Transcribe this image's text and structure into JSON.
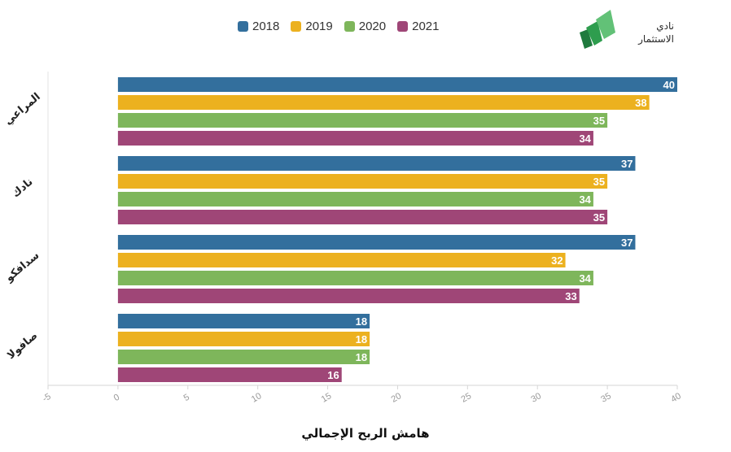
{
  "chart_data": {
    "type": "bar",
    "orientation": "horizontal",
    "categories": [
      "المراعي",
      "نادك",
      "سدافكو",
      "صافولا"
    ],
    "series": [
      {
        "name": "2018",
        "color": "#336f9d",
        "values": [
          40,
          37,
          37,
          18
        ]
      },
      {
        "name": "2019",
        "color": "#ecb11f",
        "values": [
          38,
          35,
          32,
          18
        ]
      },
      {
        "name": "2020",
        "color": "#7eb65b",
        "values": [
          35,
          34,
          34,
          18
        ]
      },
      {
        "name": "2021",
        "color": "#9f4677",
        "values": [
          34,
          35,
          33,
          16
        ]
      }
    ],
    "xlabel": "هامش الربح الإجمالي",
    "ylabel": "",
    "xlim": [
      -5,
      40
    ],
    "xticks": [
      -5,
      0,
      5,
      10,
      15,
      20,
      25,
      30,
      35,
      40
    ],
    "grid": false,
    "legend_position": "top-center",
    "data_labels": true
  },
  "logo": {
    "line1": "نادي",
    "line2": "الاستثمار",
    "colors": [
      "#1f7a3d",
      "#2e9d4e",
      "#62c177"
    ]
  }
}
